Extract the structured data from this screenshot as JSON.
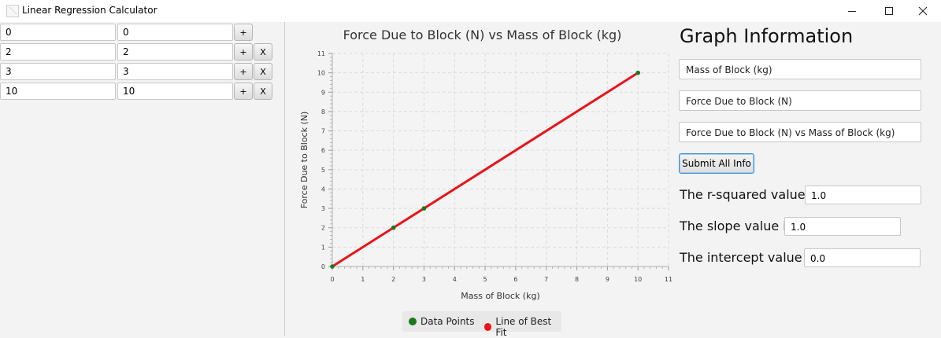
{
  "window": {
    "title": "Linear Regression Calculator"
  },
  "data_rows": [
    {
      "x": "0",
      "y": "0",
      "add_label": "+",
      "remove_label": ""
    },
    {
      "x": "2",
      "y": "2",
      "add_label": "+",
      "remove_label": "X"
    },
    {
      "x": "3",
      "y": "3",
      "add_label": "+",
      "remove_label": "X"
    },
    {
      "x": "10",
      "y": "10",
      "add_label": "+",
      "remove_label": "X"
    }
  ],
  "chart_data": {
    "type": "scatter",
    "title": "Force Due to Block (N) vs Mass of Block (kg)",
    "xlabel": "Mass of Block (kg)",
    "ylabel": "Force Due to Block (N)",
    "xlim": [
      0,
      11
    ],
    "ylim": [
      0,
      11
    ],
    "x_ticks": [
      "0",
      "1",
      "2",
      "3",
      "4",
      "5",
      "6",
      "7",
      "8",
      "9",
      "10",
      "11"
    ],
    "y_ticks": [
      "0",
      "1",
      "2",
      "3",
      "4",
      "5",
      "6",
      "7",
      "8",
      "9",
      "10",
      "11"
    ],
    "grid": true,
    "legend_position": "bottom",
    "series": [
      {
        "name": "Data Points",
        "type": "scatter",
        "color": "#1a7a1a",
        "x": [
          0,
          2,
          3,
          10
        ],
        "y": [
          0,
          2,
          3,
          10
        ]
      },
      {
        "name": "Line of Best Fit",
        "type": "line",
        "color": "#e8141a",
        "x": [
          0,
          10
        ],
        "y": [
          0,
          10
        ]
      }
    ]
  },
  "graph_info": {
    "heading": "Graph Information",
    "x_axis_input": "Mass of Block (kg)",
    "y_axis_input": "Force Due to Block (N)",
    "title_input": "Force Due to Block (N) vs Mass of Block (kg)",
    "submit_label": "Submit All Info",
    "r_squared_label": "The r-squared value is:",
    "r_squared_value": "1.0",
    "slope_label": "The slope value is:",
    "slope_value": "1.0",
    "intercept_label": "The intercept value is:",
    "intercept_value": "0.0"
  }
}
